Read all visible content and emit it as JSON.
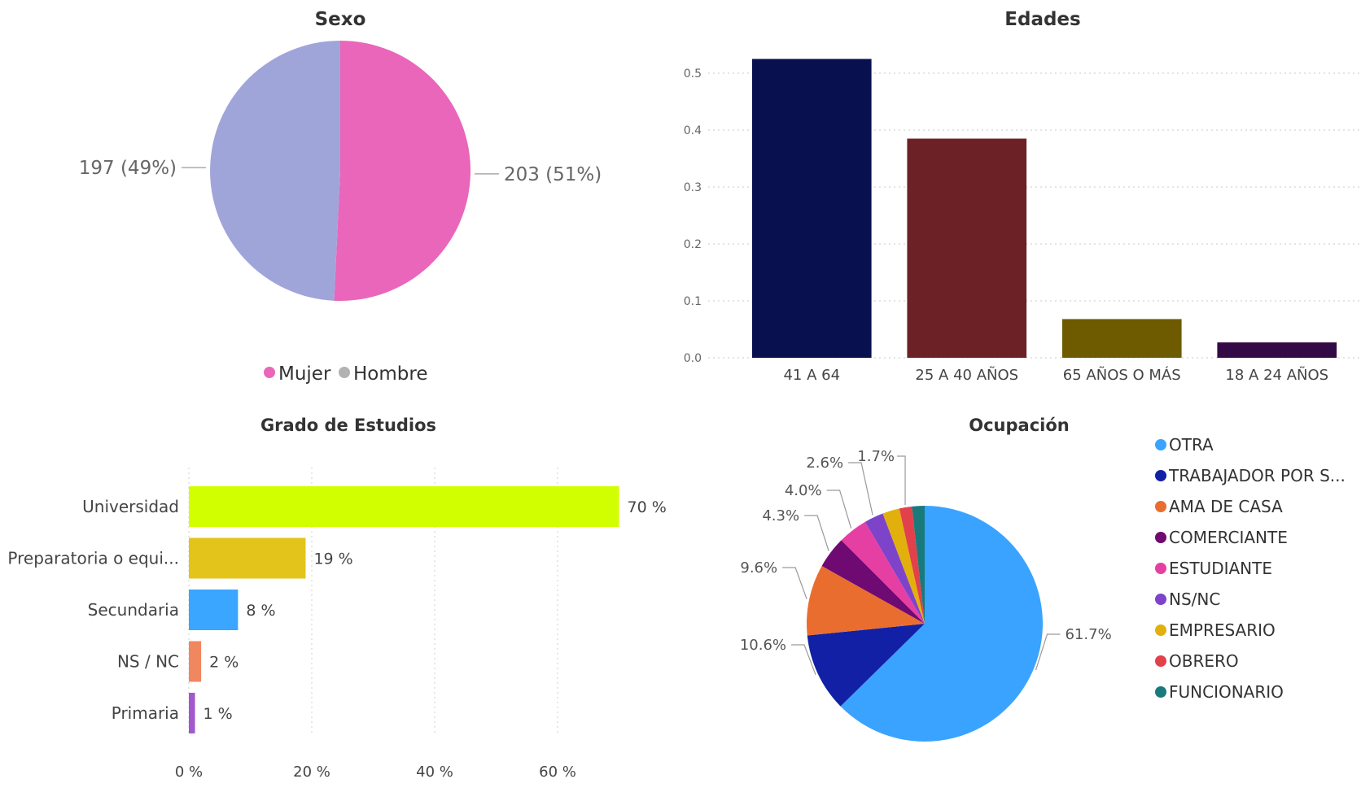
{
  "chart_data": [
    {
      "type": "pie",
      "title": "Sexo",
      "slices": [
        {
          "label": "Mujer",
          "value": 203,
          "data_label": "203 (51%)",
          "color": "#E966BA"
        },
        {
          "label": "Hombre",
          "value": 197,
          "data_label": "197 (49%)",
          "color": "#A0A5D9"
        }
      ],
      "legend": {
        "position": "bottom",
        "items": [
          "Mujer",
          "Hombre"
        ],
        "marker_colors": [
          "#E966BA",
          "#B2B2B2"
        ]
      }
    },
    {
      "type": "bar",
      "title": "Edades",
      "categories": [
        "41 A 64",
        "25 A 40 AÑOS",
        "65 AÑOS O MÁS",
        "18 A 24 AÑOS"
      ],
      "values": [
        0.525,
        0.385,
        0.068,
        0.027
      ],
      "colors": [
        "#08104F",
        "#6B2126",
        "#6E5B00",
        "#330A45"
      ],
      "ylim": [
        0,
        0.55
      ],
      "yticks": [
        "0.0",
        "0.1",
        "0.2",
        "0.3",
        "0.4",
        "0.5"
      ],
      "grid": true
    },
    {
      "type": "bar",
      "orientation": "horizontal",
      "title": "Grado de Estudios",
      "categories": [
        "Universidad",
        "Preparatoria o equi...",
        "Secundaria",
        "NS / NC",
        "Primaria"
      ],
      "values": [
        70,
        19,
        8,
        2,
        1
      ],
      "data_labels": [
        "70 %",
        "19 %",
        "8 %",
        "2 %",
        "1 %"
      ],
      "colors": [
        "#D2FF00",
        "#E2C41B",
        "#3AA6FF",
        "#F0875E",
        "#A259CC"
      ],
      "xlim": [
        0,
        80
      ],
      "xticks": [
        "0 %",
        "20 %",
        "40 %",
        "60 %"
      ],
      "grid": true
    },
    {
      "type": "pie",
      "title": "Ocupación",
      "slices": [
        {
          "label": "OTRA",
          "value": 61.7,
          "data_label": "61.7%",
          "color": "#3AA3FF"
        },
        {
          "label": "TRABAJADOR POR S...",
          "value": 10.6,
          "data_label": "10.6%",
          "color": "#1220A6"
        },
        {
          "label": "AMA DE CASA",
          "value": 9.6,
          "data_label": "9.6%",
          "color": "#EA6D30"
        },
        {
          "label": "COMERCIANTE",
          "value": 4.3,
          "data_label": "4.3%",
          "color": "#6E0A72"
        },
        {
          "label": "ESTUDIANTE",
          "value": 4.0,
          "data_label": "4.0%",
          "color": "#E63FA4"
        },
        {
          "label": "NS/NC",
          "value": 2.6,
          "data_label": "2.6%",
          "color": "#7D44C9"
        },
        {
          "label": "EMPRESARIO",
          "value": 2.3,
          "data_label": "",
          "color": "#E2B00C"
        },
        {
          "label": "OBRERO",
          "value": 1.7,
          "data_label": "1.7%",
          "color": "#E2404B"
        },
        {
          "label": "FUNCIONARIO",
          "value": 1.7,
          "data_label": "",
          "color": "#197A7C"
        }
      ],
      "legend": {
        "position": "right"
      }
    }
  ]
}
